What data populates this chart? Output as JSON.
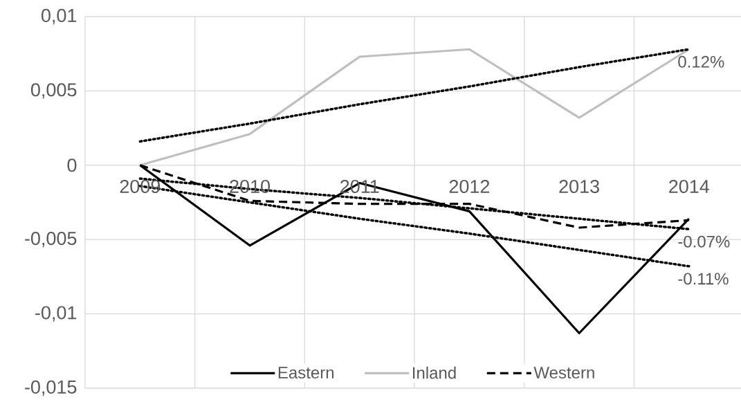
{
  "chart_data": {
    "type": "line",
    "categories": [
      "2009",
      "2010",
      "2011",
      "2012",
      "2013",
      "2014"
    ],
    "series": [
      {
        "name": "Eastern",
        "color": "#000000",
        "line_style": "solid",
        "values": [
          0,
          -0.0054,
          -0.0012,
          -0.0031,
          -0.0113,
          -0.0036
        ]
      },
      {
        "name": "Inland",
        "color": "#bfbfbf",
        "line_style": "solid",
        "values": [
          0,
          0.0021,
          0.0073,
          0.0078,
          0.0032,
          0.0078
        ]
      },
      {
        "name": "Western",
        "color": "#000000",
        "line_style": "dashed",
        "values": [
          0,
          -0.0024,
          -0.0026,
          -0.0026,
          -0.0042,
          -0.0037
        ]
      },
      {
        "type": "line",
        "color": "#000000",
        "line_style": "dotted",
        "values": [
          0.0016,
          0.0028,
          0.0041,
          0.0053,
          0.0066,
          0.0078
        ]
      },
      {
        "type": "line",
        "color": "#000000",
        "line_style": "dotted",
        "values": [
          -0.0009,
          -0.0016,
          -0.0022,
          -0.0029,
          -0.0036,
          -0.0043
        ]
      },
      {
        "type": "line",
        "color": "#000000",
        "line_style": "dotted",
        "values": [
          -0.0014,
          -0.0025,
          -0.0036,
          -0.0046,
          -0.0057,
          -0.0068
        ]
      }
    ],
    "ylim": [
      -0.015,
      0.01
    ],
    "yticks": [
      {
        "value": -0.015,
        "label": "-0,015"
      },
      {
        "value": -0.01,
        "label": "-0,01"
      },
      {
        "value": -0.005,
        "label": "-0,005"
      },
      0,
      {
        "value": 0.005,
        "label": "0,005"
      },
      {
        "value": 0.01,
        "label": "0,01"
      }
    ],
    "annotations": [
      {
        "text": "0.12%",
        "x": "2014",
        "y": 0.0078
      },
      {
        "text": "-0.07%",
        "x": "2014",
        "y": -0.0043
      },
      {
        "text": "-0.11%",
        "x": "2014",
        "y": -0.0068
      }
    ],
    "grid": true,
    "legend": "bottom"
  }
}
